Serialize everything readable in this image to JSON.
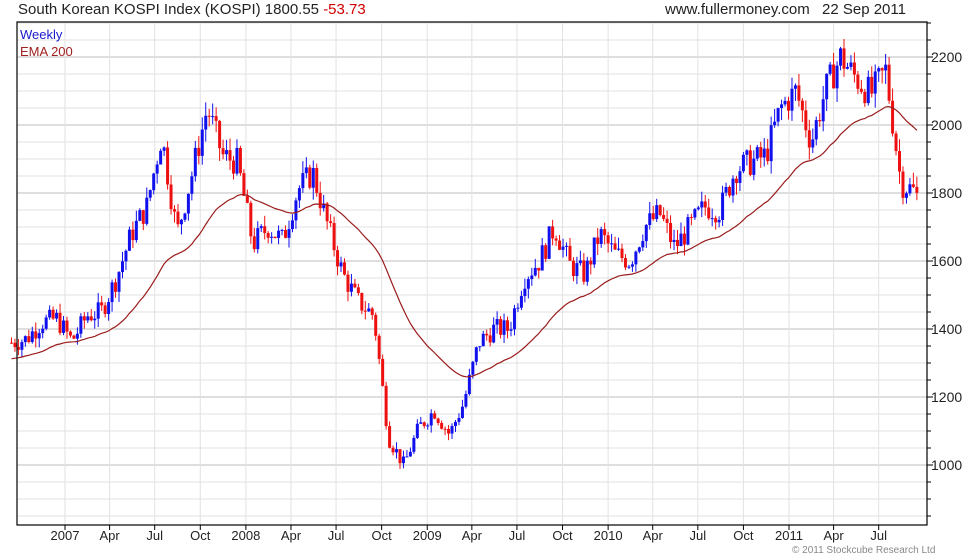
{
  "header": {
    "title": "South Korean KOSPI Index (KOSPI) 1800.55",
    "change": "-53.73",
    "site": "www.fullermoney.com",
    "date": "22 Sep 2011"
  },
  "legend": {
    "period": "Weekly",
    "indicator": "EMA 200"
  },
  "copyright": "© 2011 Stockcube Research Ltd",
  "colors": {
    "up": "#1010ee",
    "down": "#ee1010",
    "ema": "#9a1c1c",
    "grid": "#e2e2e2",
    "grid_major": "#bdbdbd"
  },
  "chart_data": {
    "type": "candlestick",
    "title": "South Korean KOSPI Index (KOSPI)",
    "last_close": 1800.55,
    "change": -53.73,
    "ylim": [
      825,
      2300
    ],
    "yticks": [
      1000,
      1200,
      1400,
      1600,
      1800,
      2000,
      2200
    ],
    "ytick_labels": [
      "1000",
      "1200",
      "1400",
      "1600",
      "1800",
      "2000",
      "2200"
    ],
    "xticks": [
      {
        "date": "2007-01-01",
        "label": "2007"
      },
      {
        "date": "2007-04-01",
        "label": "Apr"
      },
      {
        "date": "2007-07-01",
        "label": "Jul"
      },
      {
        "date": "2007-10-01",
        "label": "Oct"
      },
      {
        "date": "2008-01-01",
        "label": "2008"
      },
      {
        "date": "2008-04-01",
        "label": "Apr"
      },
      {
        "date": "2008-07-01",
        "label": "Jul"
      },
      {
        "date": "2008-10-01",
        "label": "Oct"
      },
      {
        "date": "2009-01-01",
        "label": "2009"
      },
      {
        "date": "2009-04-01",
        "label": "Apr"
      },
      {
        "date": "2009-07-01",
        "label": "Jul"
      },
      {
        "date": "2009-10-01",
        "label": "Oct"
      },
      {
        "date": "2010-01-01",
        "label": "2010"
      },
      {
        "date": "2010-04-01",
        "label": "Apr"
      },
      {
        "date": "2010-07-01",
        "label": "Jul"
      },
      {
        "date": "2010-10-01",
        "label": "Oct"
      },
      {
        "date": "2011-01-01",
        "label": "2011"
      },
      {
        "date": "2011-04-01",
        "label": "Apr"
      },
      {
        "date": "2011-07-01",
        "label": "Jul"
      }
    ],
    "grid": true,
    "frequency": "weekly",
    "ema_period_label": "EMA 200",
    "monthly_closes": [
      [
        "2006-09",
        1360
      ],
      [
        "2006-10",
        1370
      ],
      [
        "2006-11",
        1420
      ],
      [
        "2006-12",
        1430
      ],
      [
        "2007-01",
        1365
      ],
      [
        "2007-02",
        1440
      ],
      [
        "2007-03",
        1450
      ],
      [
        "2007-04",
        1550
      ],
      [
        "2007-05",
        1680
      ],
      [
        "2007-06",
        1760
      ],
      [
        "2007-07",
        1970
      ],
      [
        "2007-08",
        1680
      ],
      [
        "2007-09",
        1860
      ],
      [
        "2007-10",
        2050
      ],
      [
        "2007-11",
        1910
      ],
      [
        "2007-12",
        1890
      ],
      [
        "2008-01",
        1650
      ],
      [
        "2008-02",
        1700
      ],
      [
        "2008-03",
        1660
      ],
      [
        "2008-04",
        1810
      ],
      [
        "2008-05",
        1860
      ],
      [
        "2008-06",
        1700
      ],
      [
        "2008-07",
        1560
      ],
      [
        "2008-08",
        1480
      ],
      [
        "2008-09",
        1440
      ],
      [
        "2008-10",
        1080
      ],
      [
        "2008-11",
        1000
      ],
      [
        "2008-12",
        1110
      ],
      [
        "2009-01",
        1160
      ],
      [
        "2009-02",
        1090
      ],
      [
        "2009-03",
        1180
      ],
      [
        "2009-04",
        1360
      ],
      [
        "2009-05",
        1400
      ],
      [
        "2009-06",
        1400
      ],
      [
        "2009-07",
        1550
      ],
      [
        "2009-08",
        1600
      ],
      [
        "2009-09",
        1700
      ],
      [
        "2009-10",
        1590
      ],
      [
        "2009-11",
        1560
      ],
      [
        "2009-12",
        1680
      ],
      [
        "2010-01",
        1620
      ],
      [
        "2010-02",
        1600
      ],
      [
        "2010-03",
        1700
      ],
      [
        "2010-04",
        1740
      ],
      [
        "2010-05",
        1640
      ],
      [
        "2010-06",
        1700
      ],
      [
        "2010-07",
        1760
      ],
      [
        "2010-08",
        1750
      ],
      [
        "2010-09",
        1870
      ],
      [
        "2010-10",
        1890
      ],
      [
        "2010-11",
        1910
      ],
      [
        "2010-12",
        2050
      ],
      [
        "2011-01",
        2100
      ],
      [
        "2011-02",
        1950
      ],
      [
        "2011-03",
        2100
      ],
      [
        "2011-04",
        2200
      ],
      [
        "2011-05",
        2140
      ],
      [
        "2011-06",
        2090
      ],
      [
        "2011-07",
        2160
      ],
      [
        "2011-08",
        1830
      ],
      [
        "2011-09",
        1800.55
      ]
    ],
    "ema_start": 1310
  }
}
